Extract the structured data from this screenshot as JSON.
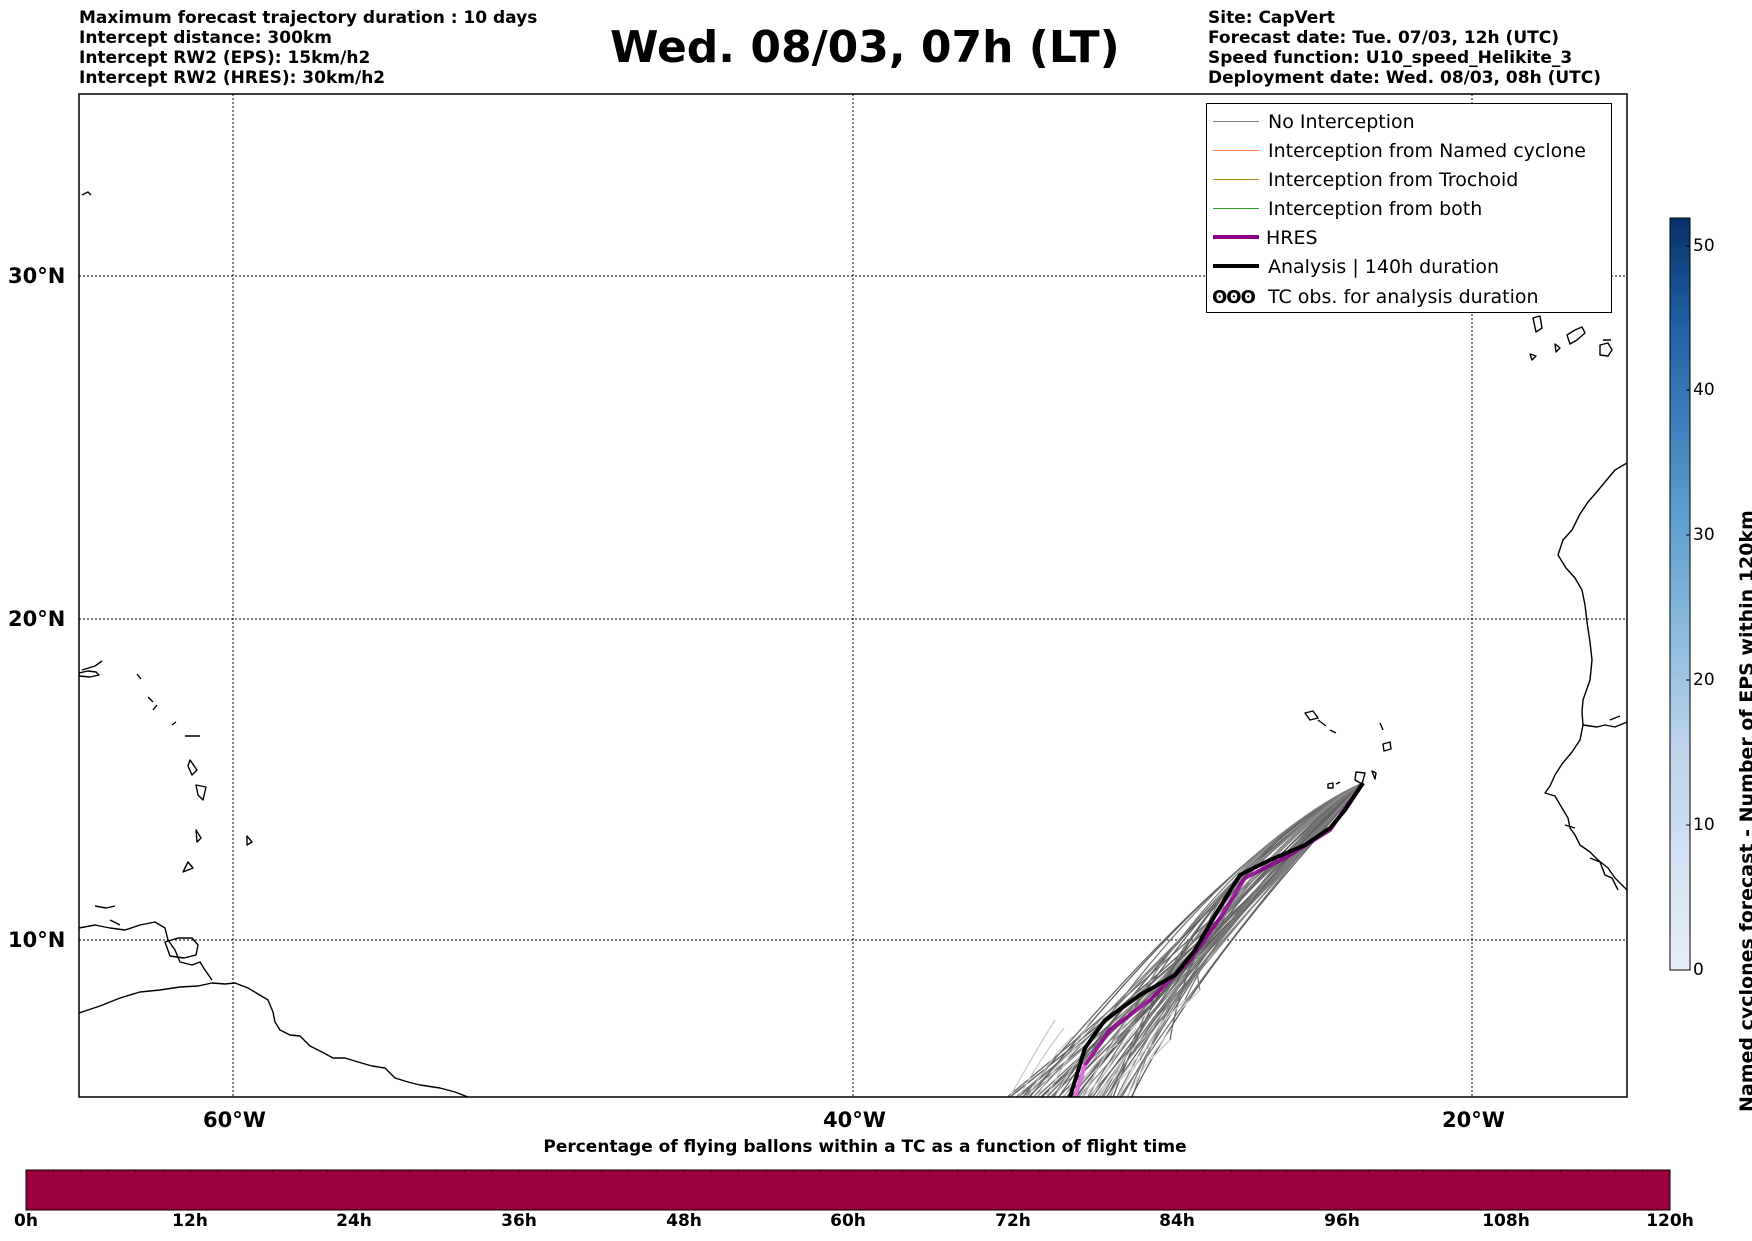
{
  "header": {
    "left_lines": [
      "Maximum forecast trajectory duration : 10 days",
      "Intercept distance: 300km",
      "Intercept RW2 (EPS):  15km/h2",
      "Intercept RW2 (HRES): 30km/h2"
    ],
    "title": "Wed. 08/03, 07h (LT)",
    "right_lines": [
      "Site: CapVert",
      "Forecast date: Tue. 07/03, 12h (UTC)",
      "Speed function: U10_speed_Helikite_3",
      "Deployment date: Wed. 08/03, 08h (UTC)"
    ]
  },
  "map": {
    "lat_labels": [
      "30°N",
      "20°N",
      "10°N"
    ],
    "lon_labels": [
      "60°W",
      "40°W",
      "20°W"
    ],
    "colors": {
      "no_interception": "#808080",
      "named_cyclone": "#ff7f50",
      "trochoid": "#a0902a",
      "both": "#2ca02c",
      "hres": "#8b008b",
      "analysis": "#000000"
    }
  },
  "legend": {
    "items": [
      {
        "label": "No Interception",
        "color": "#808080"
      },
      {
        "label": "Interception from Named cyclone",
        "color": "#ff7f50"
      },
      {
        "label": "Interception from Trochoid",
        "color": "#a0902a"
      },
      {
        "label": "Interception from both",
        "color": "#2ca02c"
      },
      {
        "label": "HRES",
        "color": "#8b008b"
      },
      {
        "label": "Analysis | 140h duration",
        "color": "#000000"
      },
      {
        "label": "TC obs. for analysis duration",
        "symbol": "ʘʘʘ"
      }
    ]
  },
  "bottom_colorbar": {
    "title": "Percentage of flying ballons within a TC as a function of flight time",
    "color": "#9c003c",
    "ticks": [
      "0h",
      "12h",
      "24h",
      "36h",
      "48h",
      "60h",
      "72h",
      "84h",
      "96h",
      "108h",
      "120h"
    ]
  },
  "side_colorbar": {
    "title": "Named cyclones forecast - Number of EPS within 120km",
    "ticks": [
      "0",
      "10",
      "20",
      "30",
      "40",
      "50"
    ],
    "color_low": "#e8f0fa",
    "color_high": "#08306b"
  }
}
